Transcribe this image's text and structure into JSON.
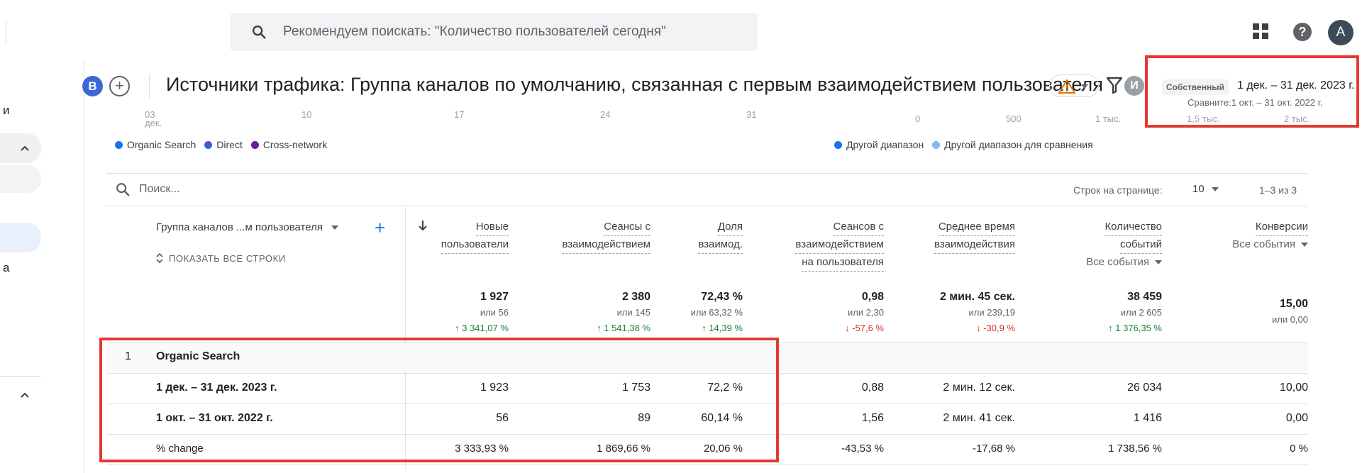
{
  "topbar": {
    "search_placeholder": "Рекомендуем поискать: \"Количество пользователей сегодня\"",
    "avatar_letter": "A",
    "help_label": "?"
  },
  "sidebar": {
    "frag_1": "и",
    "frag_2": "а"
  },
  "header": {
    "badge_b": "B",
    "badge_plus": "+",
    "title": "Источники трафика: Группа каналов по умолчанию, связанная с первым взаимодействием пользователя",
    "badge_i": "И",
    "own_label": "Собственный",
    "date_range": "1 дек. – 31 дек. 2023 г.",
    "compare_range": "Сравните:1 окт. – 31 окт. 2022 г."
  },
  "chart_remnants": {
    "ticks_left": [
      "03",
      "дек.",
      "10",
      "17",
      "24",
      "31"
    ],
    "ticks_right": [
      "0",
      "500",
      "1 тыс.",
      "1,5 тыс.",
      "2 тыс."
    ],
    "legend_left": [
      "Organic Search",
      "Direct",
      "Cross-network"
    ],
    "legend_right": [
      "Другой диапазон",
      "Другой диапазон для сравнения"
    ]
  },
  "colors": {
    "organic": "#1a73e8",
    "direct": "#3b5bdb",
    "cross": "#6a1b9a",
    "range": "#1a73e8",
    "range_compare": "#8ab4f8",
    "highlight": "#e53935"
  },
  "table": {
    "search_placeholder": "Поиск...",
    "rows_per_page_label": "Строк на странице:",
    "rows_per_page_value": "10",
    "range_label": "1–3 из 3",
    "dimension_header": "Группа каналов ...м пользователя",
    "add_dimension": "+",
    "show_all_rows": "ПОКАЗАТЬ ВСЕ СТРОКИ",
    "columns": [
      {
        "line1": "Новые",
        "line2": "пользователи",
        "line3": ""
      },
      {
        "line1": "Сеансы с",
        "line2": "взаимодействием",
        "line3": ""
      },
      {
        "line1": "Доля",
        "line2": "взаимод.",
        "line3": ""
      },
      {
        "line1": "Сеансов с",
        "line2": "взаимодействием",
        "line3": "на пользователя"
      },
      {
        "line1": "Среднее время",
        "line2": "взаимодействия",
        "line3": ""
      },
      {
        "line1": "Количество",
        "line2": "событий",
        "line3": "Все события"
      },
      {
        "line1": "Конверсии",
        "line2": "Все события",
        "line3": ""
      }
    ],
    "totals": [
      {
        "value": "1 927",
        "or": "или 56",
        "change": "↑ 3 341,07 %"
      },
      {
        "value": "2 380",
        "or": "или 145",
        "change": "↑ 1 541,38 %"
      },
      {
        "value": "72,43 %",
        "or": "или 63,32 %",
        "change": "↑ 14,39 %"
      },
      {
        "value": "0,98",
        "or": "или 2,30",
        "change": "↓ -57,6 %"
      },
      {
        "value": "2 мин. 45 сек.",
        "or": "или 239,19",
        "change": "↓ -30,9 %"
      },
      {
        "value": "38 459",
        "or": "или 2 605",
        "change": "↑ 1 376,35 %"
      },
      {
        "value": "15,00",
        "or": "или 0,00",
        "change": ""
      }
    ],
    "group_index": "1",
    "group_name": "Organic Search",
    "rows": [
      {
        "label": "1 дек. – 31 дек. 2023 г.",
        "values": [
          "1 923",
          "1 753",
          "72,2 %",
          "0,88",
          "2 мин. 12 сек.",
          "26 034",
          "10,00"
        ]
      },
      {
        "label": "1 окт. – 31 окт. 2022 г.",
        "values": [
          "56",
          "89",
          "60,14 %",
          "1,56",
          "2 мин. 41 сек.",
          "1 416",
          "0,00"
        ]
      },
      {
        "label": "% change",
        "values": [
          "3 333,93 %",
          "1 869,66 %",
          "20,06 %",
          "-43,53 %",
          "-17,68 %",
          "1 738,56 %",
          "0 %"
        ]
      }
    ]
  }
}
